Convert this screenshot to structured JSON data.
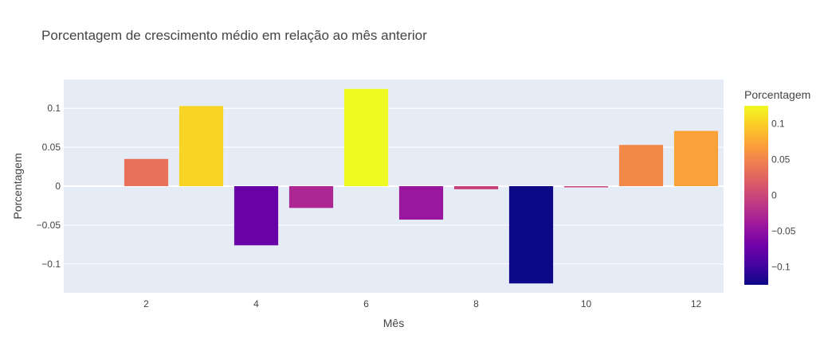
{
  "chart_data": {
    "type": "bar",
    "title": "Porcentagem de crescimento médio em relação ao mês anterior",
    "xlabel": "Mês",
    "ylabel": "Porcentagem",
    "x": [
      2,
      3,
      4,
      5,
      6,
      7,
      8,
      9,
      10,
      11,
      12
    ],
    "values": [
      0.035,
      0.103,
      -0.076,
      -0.028,
      0.125,
      -0.043,
      -0.004,
      -0.125,
      -0.001,
      0.053,
      0.071
    ],
    "xlim": [
      0.5,
      12.5
    ],
    "ylim": [
      -0.137,
      0.137
    ],
    "x_ticks": [
      2,
      4,
      6,
      8,
      10,
      12
    ],
    "y_ticks": [
      0.1,
      0.05,
      0,
      -0.05,
      -0.1
    ],
    "y_tick_labels": [
      "0.1",
      "0.05",
      "0",
      "−0.05",
      "−0.1"
    ],
    "grid": true,
    "colorbar": {
      "title": "Porcentagem",
      "range": [
        -0.125,
        0.125
      ],
      "ticks": [
        0.1,
        0.05,
        0,
        -0.05,
        -0.1
      ],
      "tick_labels": [
        "0.1",
        "0.05",
        "0",
        "−0.05",
        "−0.1"
      ],
      "colorscale": [
        "#0d0887",
        "#46039f",
        "#7201a8",
        "#9c179e",
        "#bd3786",
        "#d8576b",
        "#ed7953",
        "#fb9f3a",
        "#fdca26",
        "#f0f921"
      ]
    },
    "colors": {
      "plot_background": "#e5ecf6",
      "gridline": "#ffffff"
    }
  }
}
